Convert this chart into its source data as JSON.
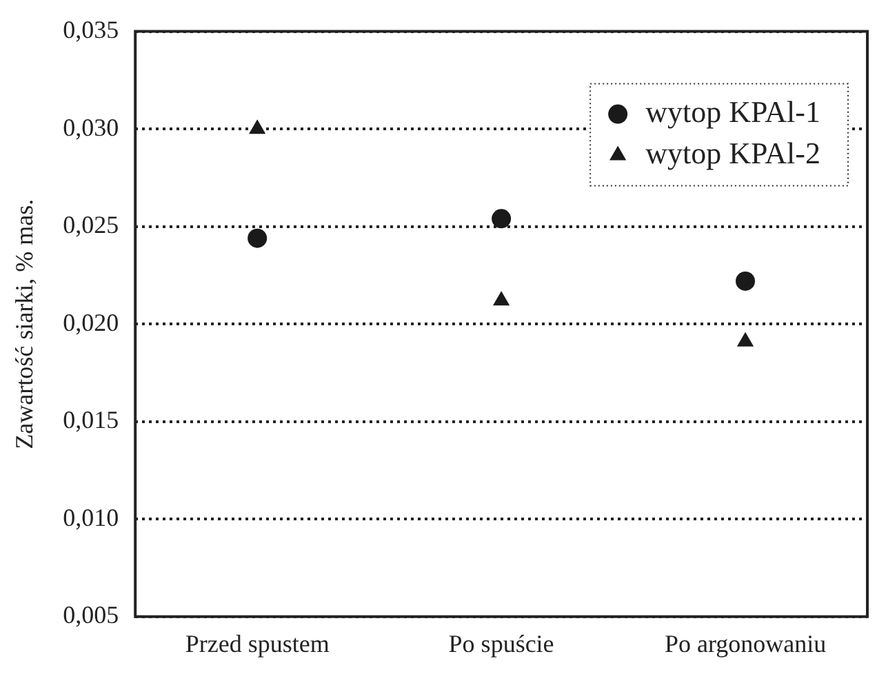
{
  "chart_data": {
    "type": "scatter",
    "ylabel": "Zawartość siarki, % mas.",
    "categories": [
      "Przed spustem",
      "Po spuście",
      "Po argonowaniu"
    ],
    "series": [
      {
        "name": "wytop KPAl-1",
        "color": "#1a1a1a",
        "marker": "circle",
        "values": [
          0.0244,
          0.0254,
          0.0222
        ]
      },
      {
        "name": "wytop KPAl-2",
        "color": "#1a1a1a",
        "marker": "triangle",
        "values": [
          0.03,
          0.0212,
          0.0191
        ]
      }
    ],
    "ylim": [
      0.005,
      0.035
    ],
    "yticks": [
      {
        "value": 0.005,
        "label": "0,005"
      },
      {
        "value": 0.01,
        "label": "0,010"
      },
      {
        "value": 0.015,
        "label": "0,015"
      },
      {
        "value": 0.02,
        "label": "0,020"
      },
      {
        "value": 0.025,
        "label": "0,025"
      },
      {
        "value": 0.03,
        "label": "0,030"
      },
      {
        "value": 0.035,
        "label": "0,035"
      }
    ],
    "grid": "y",
    "line_style": "dotted",
    "legend": "top right"
  }
}
